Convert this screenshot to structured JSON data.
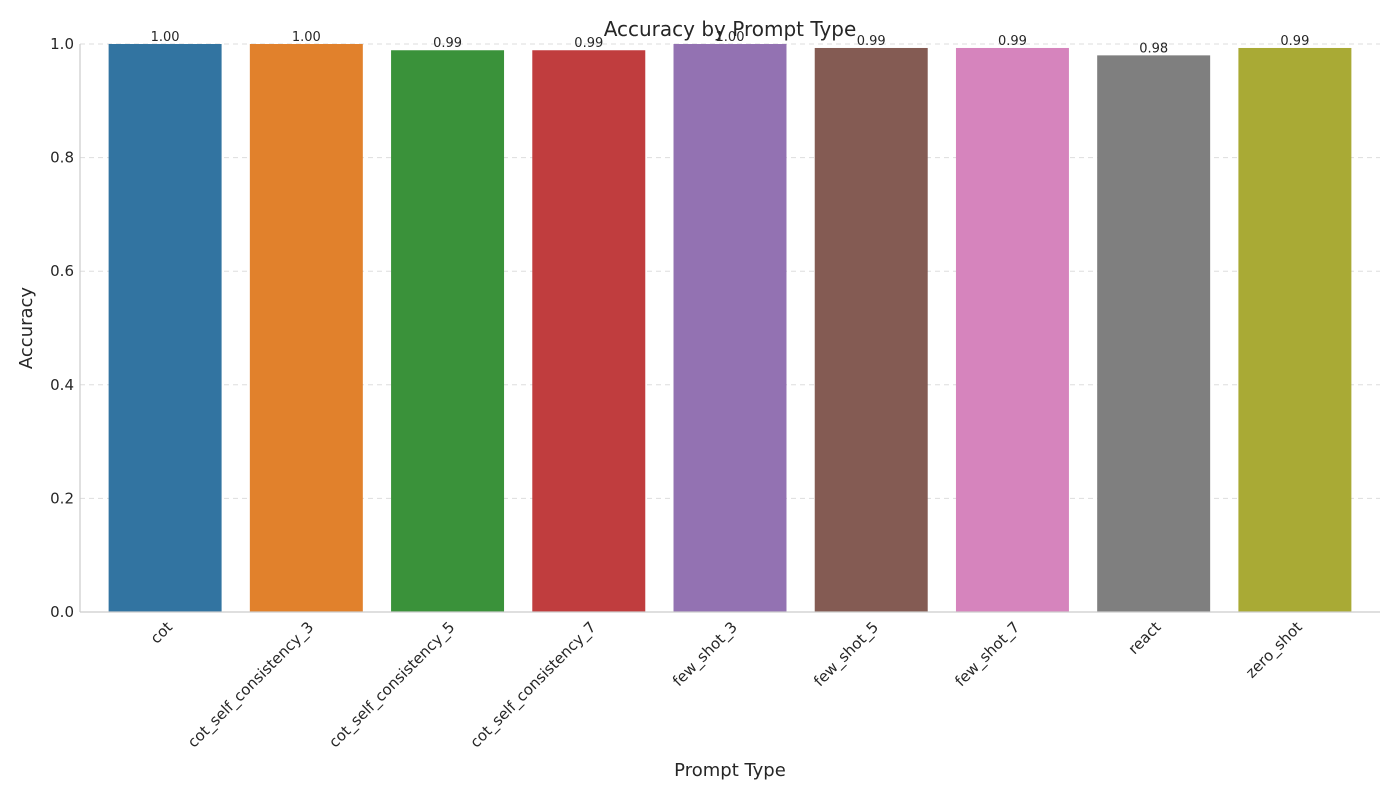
{
  "chart_data": {
    "type": "bar",
    "title": "Accuracy by Prompt Type",
    "xlabel": "Prompt Type",
    "ylabel": "Accuracy",
    "ylim": [
      0,
      1.0
    ],
    "yticks": [
      "0.0",
      "0.2",
      "0.4",
      "0.6",
      "0.8",
      "1.0"
    ],
    "grid": true,
    "categories": [
      "cot",
      "cot_self_consistency_3",
      "cot_self_consistency_5",
      "cot_self_consistency_7",
      "few_shot_3",
      "few_shot_5",
      "few_shot_7",
      "react",
      "zero_shot"
    ],
    "values": [
      1.0,
      1.0,
      0.989,
      0.989,
      1.0,
      0.993,
      0.993,
      0.98,
      0.993
    ],
    "value_labels": [
      "1.00",
      "1.00",
      "0.99",
      "0.99",
      "1.00",
      "0.99",
      "0.99",
      "0.98",
      "0.99"
    ],
    "colors": [
      "#3274a1",
      "#e1812c",
      "#3a923a",
      "#c03d3e",
      "#9372b2",
      "#845b53",
      "#d684bd",
      "#7f7f7f",
      "#a9aa35"
    ]
  }
}
